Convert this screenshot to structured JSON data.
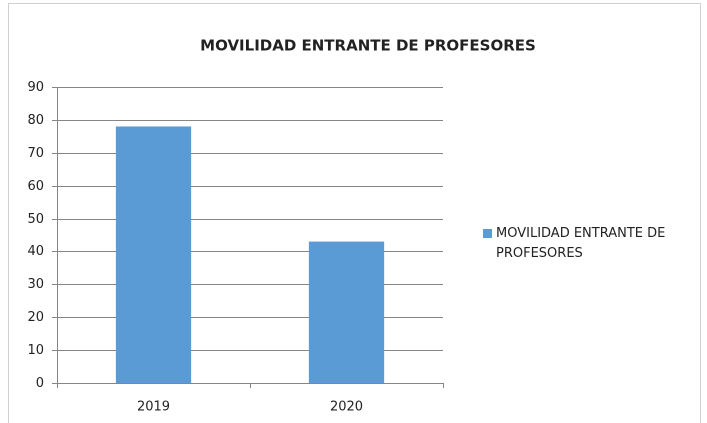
{
  "chart_data": {
    "type": "bar",
    "title": "MOVILIDAD ENTRANTE DE PROFESORES",
    "categories": [
      "2019",
      "2020"
    ],
    "series": [
      {
        "name": "MOVILIDAD ENTRANTE DE PROFESORES",
        "color": "#5b9bd5",
        "values": [
          78,
          43
        ]
      }
    ],
    "ylim": [
      0,
      90
    ],
    "yticks": [
      0,
      10,
      20,
      30,
      40,
      50,
      60,
      70,
      80,
      90
    ],
    "grid": true,
    "legend": "right"
  }
}
